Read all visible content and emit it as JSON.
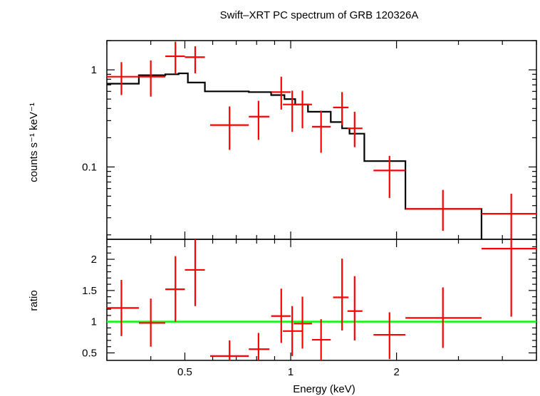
{
  "title": "Swift–XRT PC spectrum of GRB 120326A",
  "colors": {
    "data": "#ff0000",
    "model": "#000000",
    "unity": "#00ff00",
    "frame": "#000000"
  },
  "chart_data": [
    {
      "type": "scatter",
      "panel": "top",
      "title": "Swift–XRT PC spectrum of GRB 120326A",
      "ylabel": "counts s⁻¹ keV⁻¹",
      "yscale": "log",
      "xscale": "log",
      "xlim": [
        0.3,
        5.0
      ],
      "ylim": [
        0.018,
        2.0
      ],
      "yticks": [
        {
          "value": 1,
          "label": "1"
        },
        {
          "value": 0.1,
          "label": "0.1"
        }
      ],
      "series": [
        {
          "kind": "data",
          "points": [
            {
              "x": 0.33,
              "xlo": 0.3,
              "xhi": 0.37,
              "y": 0.85,
              "ylo": 0.55,
              "yhi": 1.2
            },
            {
              "x": 0.4,
              "xlo": 0.37,
              "xhi": 0.44,
              "y": 0.85,
              "ylo": 0.53,
              "yhi": 1.25
            },
            {
              "x": 0.47,
              "xlo": 0.44,
              "xhi": 0.5,
              "y": 1.38,
              "ylo": 0.92,
              "yhi": 1.95
            },
            {
              "x": 0.535,
              "xlo": 0.5,
              "xhi": 0.57,
              "y": 1.35,
              "ylo": 0.92,
              "yhi": 1.75
            },
            {
              "x": 0.67,
              "xlo": 0.59,
              "xhi": 0.76,
              "y": 0.27,
              "ylo": 0.15,
              "yhi": 0.42
            },
            {
              "x": 0.81,
              "xlo": 0.76,
              "xhi": 0.87,
              "y": 0.33,
              "ylo": 0.19,
              "yhi": 0.48
            },
            {
              "x": 0.94,
              "xlo": 0.88,
              "xhi": 1.0,
              "y": 0.59,
              "ylo": 0.39,
              "yhi": 0.85
            },
            {
              "x": 1.01,
              "xlo": 0.95,
              "xhi": 1.08,
              "y": 0.44,
              "ylo": 0.23,
              "yhi": 0.61
            },
            {
              "x": 1.08,
              "xlo": 1.02,
              "xhi": 1.15,
              "y": 0.44,
              "ylo": 0.25,
              "yhi": 0.61
            },
            {
              "x": 1.22,
              "xlo": 1.15,
              "xhi": 1.3,
              "y": 0.26,
              "ylo": 0.14,
              "yhi": 0.38
            },
            {
              "x": 1.4,
              "xlo": 1.32,
              "xhi": 1.46,
              "y": 0.41,
              "ylo": 0.27,
              "yhi": 0.59
            },
            {
              "x": 1.52,
              "xlo": 1.45,
              "xhi": 1.6,
              "y": 0.25,
              "ylo": 0.16,
              "yhi": 0.37
            },
            {
              "x": 1.91,
              "xlo": 1.72,
              "xhi": 2.12,
              "y": 0.092,
              "ylo": 0.048,
              "yhi": 0.13
            },
            {
              "x": 2.71,
              "xlo": 2.12,
              "xhi": 3.49,
              "y": 0.037,
              "ylo": 0.022,
              "yhi": 0.058
            },
            {
              "x": 4.24,
              "xlo": 3.49,
              "xhi": 5.0,
              "y": 0.033,
              "ylo": 0.017,
              "yhi": 0.053
            }
          ]
        },
        {
          "kind": "model",
          "edges": [
            0.3,
            0.37,
            0.44,
            0.48,
            0.51,
            0.57,
            0.76,
            0.88,
            0.96,
            1.03,
            1.12,
            1.3,
            1.4,
            1.47,
            1.62,
            2.12,
            3.49
          ],
          "levels": [
            0.72,
            0.88,
            0.9,
            0.92,
            0.74,
            0.6,
            0.59,
            0.55,
            0.5,
            0.44,
            0.37,
            0.29,
            0.25,
            0.22,
            0.115,
            0.037
          ]
        }
      ]
    },
    {
      "type": "scatter",
      "panel": "bottom",
      "xlabel": "Energy (keV)",
      "ylabel": "ratio",
      "xscale": "log",
      "xlim": [
        0.3,
        5.0
      ],
      "ylim": [
        0.38,
        2.32
      ],
      "reference_line": 1,
      "xticks": [
        {
          "value": 0.5,
          "label": "0.5"
        },
        {
          "value": 1,
          "label": "1"
        },
        {
          "value": 2,
          "label": "2"
        }
      ],
      "yticks": [
        {
          "value": 0.5,
          "label": "0.5"
        },
        {
          "value": 1,
          "label": "1"
        },
        {
          "value": 1.5,
          "label": "1.5"
        },
        {
          "value": 2,
          "label": "2"
        }
      ],
      "points": [
        {
          "x": 0.33,
          "xlo": 0.3,
          "xhi": 0.37,
          "y": 1.22,
          "ylo": 0.77,
          "yhi": 1.67
        },
        {
          "x": 0.4,
          "xlo": 0.37,
          "xhi": 0.44,
          "y": 0.98,
          "ylo": 0.6,
          "yhi": 1.37
        },
        {
          "x": 0.47,
          "xlo": 0.44,
          "xhi": 0.5,
          "y": 1.52,
          "ylo": 1.0,
          "yhi": 2.05
        },
        {
          "x": 0.535,
          "xlo": 0.5,
          "xhi": 0.57,
          "y": 1.83,
          "ylo": 1.25,
          "yhi": 2.32
        },
        {
          "x": 0.67,
          "xlo": 0.59,
          "xhi": 0.76,
          "y": 0.45,
          "ylo": 0.38,
          "yhi": 0.7
        },
        {
          "x": 0.81,
          "xlo": 0.76,
          "xhi": 0.87,
          "y": 0.56,
          "ylo": 0.38,
          "yhi": 0.82
        },
        {
          "x": 0.94,
          "xlo": 0.88,
          "xhi": 1.0,
          "y": 1.09,
          "ylo": 0.66,
          "yhi": 1.53
        },
        {
          "x": 1.01,
          "xlo": 0.95,
          "xhi": 1.08,
          "y": 0.85,
          "ylo": 0.45,
          "yhi": 1.25
        },
        {
          "x": 1.08,
          "xlo": 1.02,
          "xhi": 1.15,
          "y": 0.97,
          "ylo": 0.57,
          "yhi": 1.4
        },
        {
          "x": 1.22,
          "xlo": 1.15,
          "xhi": 1.3,
          "y": 0.71,
          "ylo": 0.38,
          "yhi": 1.04
        },
        {
          "x": 1.4,
          "xlo": 1.32,
          "xhi": 1.46,
          "y": 1.39,
          "ylo": 0.86,
          "yhi": 2.01
        },
        {
          "x": 1.52,
          "xlo": 1.45,
          "xhi": 1.6,
          "y": 1.17,
          "ylo": 0.7,
          "yhi": 1.73
        },
        {
          "x": 1.91,
          "xlo": 1.72,
          "xhi": 2.12,
          "y": 0.79,
          "ylo": 0.4,
          "yhi": 1.15
        },
        {
          "x": 2.71,
          "xlo": 2.12,
          "xhi": 3.49,
          "y": 1.06,
          "ylo": 0.58,
          "yhi": 1.55
        },
        {
          "x": 4.24,
          "xlo": 3.49,
          "xhi": 5.0,
          "y": 2.17,
          "ylo": 1.08,
          "yhi": 2.32
        }
      ]
    }
  ]
}
